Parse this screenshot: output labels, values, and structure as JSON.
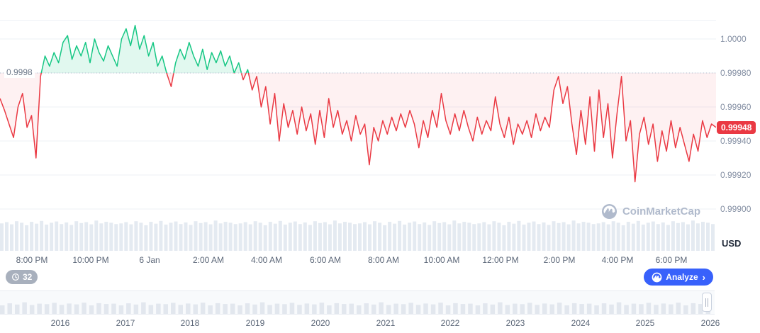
{
  "watermark": {
    "text": "CoinMarketCap"
  },
  "toolbar": {
    "history_count": "32",
    "analyze_label": "Analyze"
  },
  "icons": {
    "chevron_right": "›"
  },
  "timeline": {
    "years": [
      "2016",
      "2017",
      "2018",
      "2019",
      "2020",
      "2021",
      "2022",
      "2023",
      "2024",
      "2025",
      "2026"
    ],
    "spark": [
      0.5,
      0.62,
      0.55,
      0.68,
      0.52,
      0.6,
      0.57,
      0.65,
      0.53,
      0.61,
      0.56,
      0.66,
      0.5,
      0.63,
      0.58,
      0.6,
      0.5,
      0.62,
      0.55,
      0.68,
      0.52,
      0.6,
      0.57,
      0.65,
      0.53,
      0.61,
      0.56,
      0.66,
      0.5,
      0.63,
      0.58,
      0.6,
      0.5,
      0.62,
      0.55,
      0.68,
      0.52,
      0.6,
      0.57,
      0.65,
      0.53,
      0.61,
      0.56,
      0.66,
      0.5,
      0.63,
      0.58,
      0.6,
      0.5,
      0.62,
      0.55,
      0.68,
      0.52,
      0.6,
      0.57,
      0.65,
      0.53,
      0.61,
      0.56,
      0.66,
      0.5,
      0.63,
      0.58,
      0.6,
      0.5,
      0.62,
      0.55,
      0.68,
      0.52,
      0.6,
      0.57,
      0.65,
      0.53,
      0.61,
      0.56,
      0.66,
      0.5,
      0.63,
      0.58,
      0.6,
      0.5,
      0.62,
      0.55,
      0.68,
      0.52,
      0.6,
      0.57,
      0.65,
      0.53,
      0.61,
      0.56,
      0.66,
      0.5,
      0.63,
      0.58,
      0.6
    ]
  },
  "chart_data": {
    "type": "line",
    "subtype": "baseline",
    "baseline_value": 0.9998,
    "baseline_label": "0.9998",
    "current_price": 0.99948,
    "current_price_label": "0.99948",
    "grid": true,
    "ylim": [
      0.999,
      1.0001
    ],
    "colors": {
      "up": "#16c784",
      "down": "#ea3943",
      "up_fill": "rgba(22,199,132,0.13)",
      "down_fill": "rgba(234,57,67,0.07)",
      "accent_blue": "#3861fb",
      "volume": "#e4eaf1",
      "gridline": "#eef1f6"
    },
    "y_axis": {
      "currency": "USD",
      "ticks": [
        {
          "label": "1.0000",
          "value": 1.0
        },
        {
          "label": "0.99980",
          "value": 0.9998
        },
        {
          "label": "0.99960",
          "value": 0.9996
        },
        {
          "label": "0.99940",
          "value": 0.9994
        },
        {
          "label": "0.99920",
          "value": 0.9992
        },
        {
          "label": "0.99900",
          "value": 0.999
        }
      ]
    },
    "x_axis": {
      "ticks": [
        {
          "label": "8:00 PM",
          "pos": 0.045
        },
        {
          "label": "10:00 PM",
          "pos": 0.127
        },
        {
          "label": "6 Jan",
          "pos": 0.209
        },
        {
          "label": "2:00 AM",
          "pos": 0.291
        },
        {
          "label": "4:00 AM",
          "pos": 0.372
        },
        {
          "label": "6:00 AM",
          "pos": 0.454
        },
        {
          "label": "8:00 AM",
          "pos": 0.536
        },
        {
          "label": "10:00 AM",
          "pos": 0.617
        },
        {
          "label": "12:00 PM",
          "pos": 0.699
        },
        {
          "label": "2:00 PM",
          "pos": 0.781
        },
        {
          "label": "4:00 PM",
          "pos": 0.862
        },
        {
          "label": "6:00 PM",
          "pos": 0.938
        }
      ]
    },
    "prices": [
      0.99965,
      0.99958,
      0.9995,
      0.99942,
      0.9996,
      0.99968,
      0.99948,
      0.99955,
      0.9993,
      0.99978,
      0.9999,
      0.99984,
      0.99992,
      0.99986,
      0.99998,
      1.00002,
      0.99988,
      0.99996,
      0.9999,
      0.99998,
      0.99986,
      1.0,
      0.99992,
      0.99987,
      0.99996,
      0.9999,
      0.99984,
      1.0,
      1.00006,
      0.99996,
      1.00008,
      0.99994,
      1.00002,
      0.9999,
      0.99998,
      0.99984,
      0.9999,
      0.9998,
      0.99972,
      0.99986,
      0.99994,
      0.99988,
      0.99998,
      0.9999,
      0.99984,
      0.99994,
      0.99982,
      0.99992,
      0.99986,
      0.99993,
      0.99984,
      0.9999,
      0.9998,
      0.99986,
      0.99976,
      0.99982,
      0.9997,
      0.99978,
      0.9996,
      0.99972,
      0.9995,
      0.99968,
      0.9994,
      0.99962,
      0.99948,
      0.99958,
      0.99944,
      0.9996,
      0.99946,
      0.99956,
      0.99938,
      0.99958,
      0.99942,
      0.99965,
      0.99948,
      0.99958,
      0.99944,
      0.99952,
      0.9994,
      0.99955,
      0.99944,
      0.9995,
      0.99926,
      0.99948,
      0.9994,
      0.99952,
      0.99944,
      0.99954,
      0.99946,
      0.99956,
      0.99948,
      0.99958,
      0.9995,
      0.99936,
      0.99952,
      0.99942,
      0.99958,
      0.99948,
      0.99968,
      0.99952,
      0.99944,
      0.99956,
      0.99946,
      0.99958,
      0.99948,
      0.9994,
      0.99954,
      0.99944,
      0.99952,
      0.99946,
      0.99966,
      0.9995,
      0.99942,
      0.99954,
      0.99938,
      0.9995,
      0.99944,
      0.99952,
      0.99942,
      0.99956,
      0.99946,
      0.99954,
      0.99948,
      0.9997,
      0.99978,
      0.99962,
      0.99972,
      0.9995,
      0.99932,
      0.99958,
      0.99938,
      0.99966,
      0.99934,
      0.9997,
      0.99942,
      0.99962,
      0.9993,
      0.99956,
      0.99978,
      0.9994,
      0.99952,
      0.99916,
      0.99944,
      0.99954,
      0.99938,
      0.9995,
      0.99928,
      0.99946,
      0.99934,
      0.99952,
      0.99936,
      0.99948,
      0.99938,
      0.99928,
      0.99944,
      0.99934,
      0.99952,
      0.99942,
      0.9995,
      0.99948
    ],
    "volume": [
      0.88,
      0.92,
      0.85,
      0.95,
      0.9,
      0.82,
      0.93,
      0.87,
      0.96,
      0.84,
      0.9,
      0.94,
      0.86,
      0.91,
      0.83,
      0.95,
      0.89,
      0.92,
      0.85,
      0.97,
      0.88,
      0.93,
      0.9,
      0.86,
      0.88,
      0.92,
      0.85,
      0.95,
      0.9,
      0.82,
      0.93,
      0.87,
      0.96,
      0.84,
      0.9,
      0.94,
      0.86,
      0.91,
      0.83,
      0.95,
      0.89,
      0.92,
      0.85,
      0.97,
      0.88,
      0.93,
      0.9,
      0.86,
      0.88,
      0.92,
      0.85,
      0.95,
      0.9,
      0.82,
      0.93,
      0.87,
      0.96,
      0.84,
      0.9,
      0.94,
      0.86,
      0.91,
      0.83,
      0.95,
      0.89,
      0.92,
      0.85,
      0.97,
      0.88,
      0.93,
      0.9,
      0.86,
      0.88,
      0.92,
      0.85,
      0.95,
      0.9,
      0.82,
      0.93,
      0.87,
      0.96,
      0.84,
      0.9,
      0.94,
      0.86,
      0.91,
      0.83,
      0.95,
      0.89,
      0.92,
      0.85,
      0.97,
      0.88,
      0.93,
      0.9,
      0.86,
      0.88,
      0.92,
      0.85,
      0.95,
      0.9,
      0.82,
      0.93,
      0.87,
      0.96,
      0.84,
      0.9,
      0.94,
      0.86,
      0.91,
      0.83,
      0.95,
      0.89,
      0.92,
      0.85,
      0.97,
      0.88,
      0.93,
      0.9,
      0.86,
      0.88,
      0.92,
      0.85,
      0.95,
      0.9,
      0.82,
      0.93,
      0.87,
      0.96,
      0.84,
      0.9,
      0.94,
      0.86,
      0.91,
      0.83,
      0.95,
      0.89,
      0.92,
      0.85,
      0.97,
      0.88,
      0.93,
      0.9,
      0.86
    ]
  }
}
